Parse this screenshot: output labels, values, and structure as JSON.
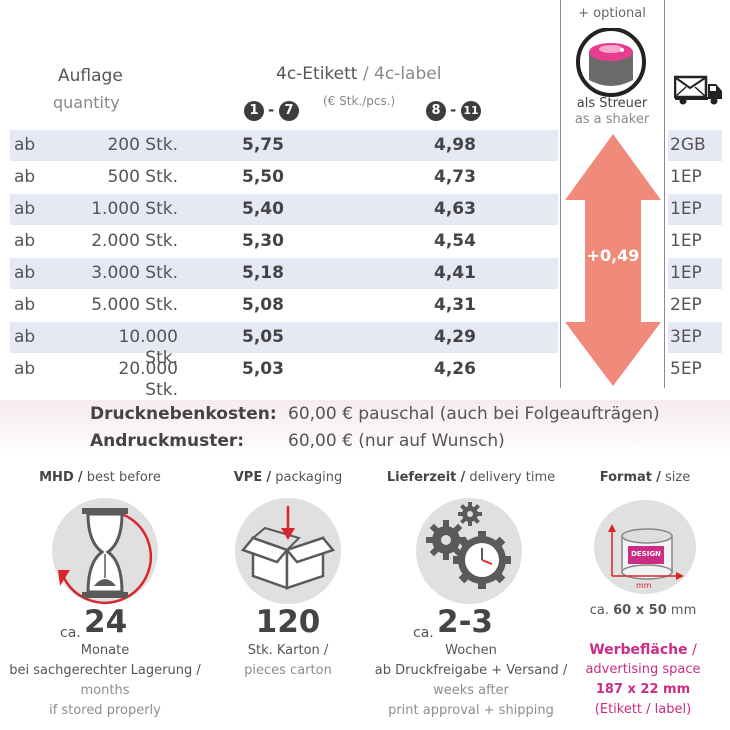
{
  "header": {
    "quantity_de": "Auflage",
    "quantity_en": "quantity",
    "label_de": "4c-Etikett",
    "label_sep": " / ",
    "label_en": "4c-label",
    "unit": "(€ Stk./pcs.)",
    "col1": {
      "from": "1",
      "dash": "-",
      "to": "7"
    },
    "col2": {
      "from": "8",
      "dash": "-",
      "to": "11"
    },
    "optional": "+ optional",
    "shaker_de": "als Streuer",
    "shaker_en": "as a shaker",
    "shipping_icon": "truck-icon"
  },
  "rows": [
    {
      "ab": "ab",
      "qty": "200 Stk.",
      "p1": "5,75",
      "p2": "4,98",
      "ship": "2GB"
    },
    {
      "ab": "ab",
      "qty": "500 Stk.",
      "p1": "5,50",
      "p2": "4,73",
      "ship": "1EP"
    },
    {
      "ab": "ab",
      "qty": "1.000 Stk.",
      "p1": "5,40",
      "p2": "4,63",
      "ship": "1EP"
    },
    {
      "ab": "ab",
      "qty": "2.000 Stk.",
      "p1": "5,30",
      "p2": "4,54",
      "ship": "1EP"
    },
    {
      "ab": "ab",
      "qty": "3.000 Stk.",
      "p1": "5,18",
      "p2": "4,41",
      "ship": "1EP"
    },
    {
      "ab": "ab",
      "qty": "5.000 Stk.",
      "p1": "5,08",
      "p2": "4,31",
      "ship": "2EP"
    },
    {
      "ab": "ab",
      "qty": "10.000 Stk.",
      "p1": "5,05",
      "p2": "4,29",
      "ship": "3EP"
    },
    {
      "ab": "ab",
      "qty": "20.000 Stk.",
      "p1": "5,03",
      "p2": "4,26",
      "ship": "5EP"
    }
  ],
  "shaker_surcharge": "+0,49",
  "costs": {
    "setup_label": "Drucknebenkosten:",
    "setup_value": "60,00 € pauschal (auch bei Folgeaufträgen)",
    "proof_label": "Andruckmuster:",
    "proof_value": "60,00 € (nur auf Wunsch)"
  },
  "features": {
    "mhd": {
      "title_de": "MHD",
      "title_en": "best before",
      "ca": "ca.",
      "value": "24",
      "l1": "Monate",
      "l2": "bei sachgerechter Lagerung /",
      "l3": "months",
      "l4": "if stored properly",
      "icon": "hourglass-icon"
    },
    "vpe": {
      "title_de": "VPE",
      "title_en": "packaging",
      "value": "120",
      "l1": "Stk. Karton /",
      "l2": "pieces carton",
      "icon": "box-icon"
    },
    "delivery": {
      "title_de": "Lieferzeit",
      "title_en": "delivery time",
      "ca": "ca.",
      "value": "2-3",
      "l1": "Wochen",
      "l2": "ab Druckfreigabe + Versand /",
      "l3": "weeks after",
      "l4": "print approval + shipping",
      "icon": "gears-clock-icon"
    },
    "format": {
      "title_de": "Format",
      "title_en": "size",
      "icon_text": "DESIGN",
      "icon_unit": "mm",
      "size_prefix": "ca.",
      "size_value": "60 x 50",
      "size_unit": "mm",
      "ad_de": "Werbefläche",
      "ad_en": "advertising space",
      "ad_size": "187 x 22 mm",
      "ad_note": "(Etikett / label)",
      "icon": "can-dimensions-icon"
    }
  },
  "colors": {
    "row_shade": "#e6e8f3",
    "arrow": "#f08a7a",
    "magenta": "#cc2b86",
    "icon_circle": "#e0e0e0"
  }
}
